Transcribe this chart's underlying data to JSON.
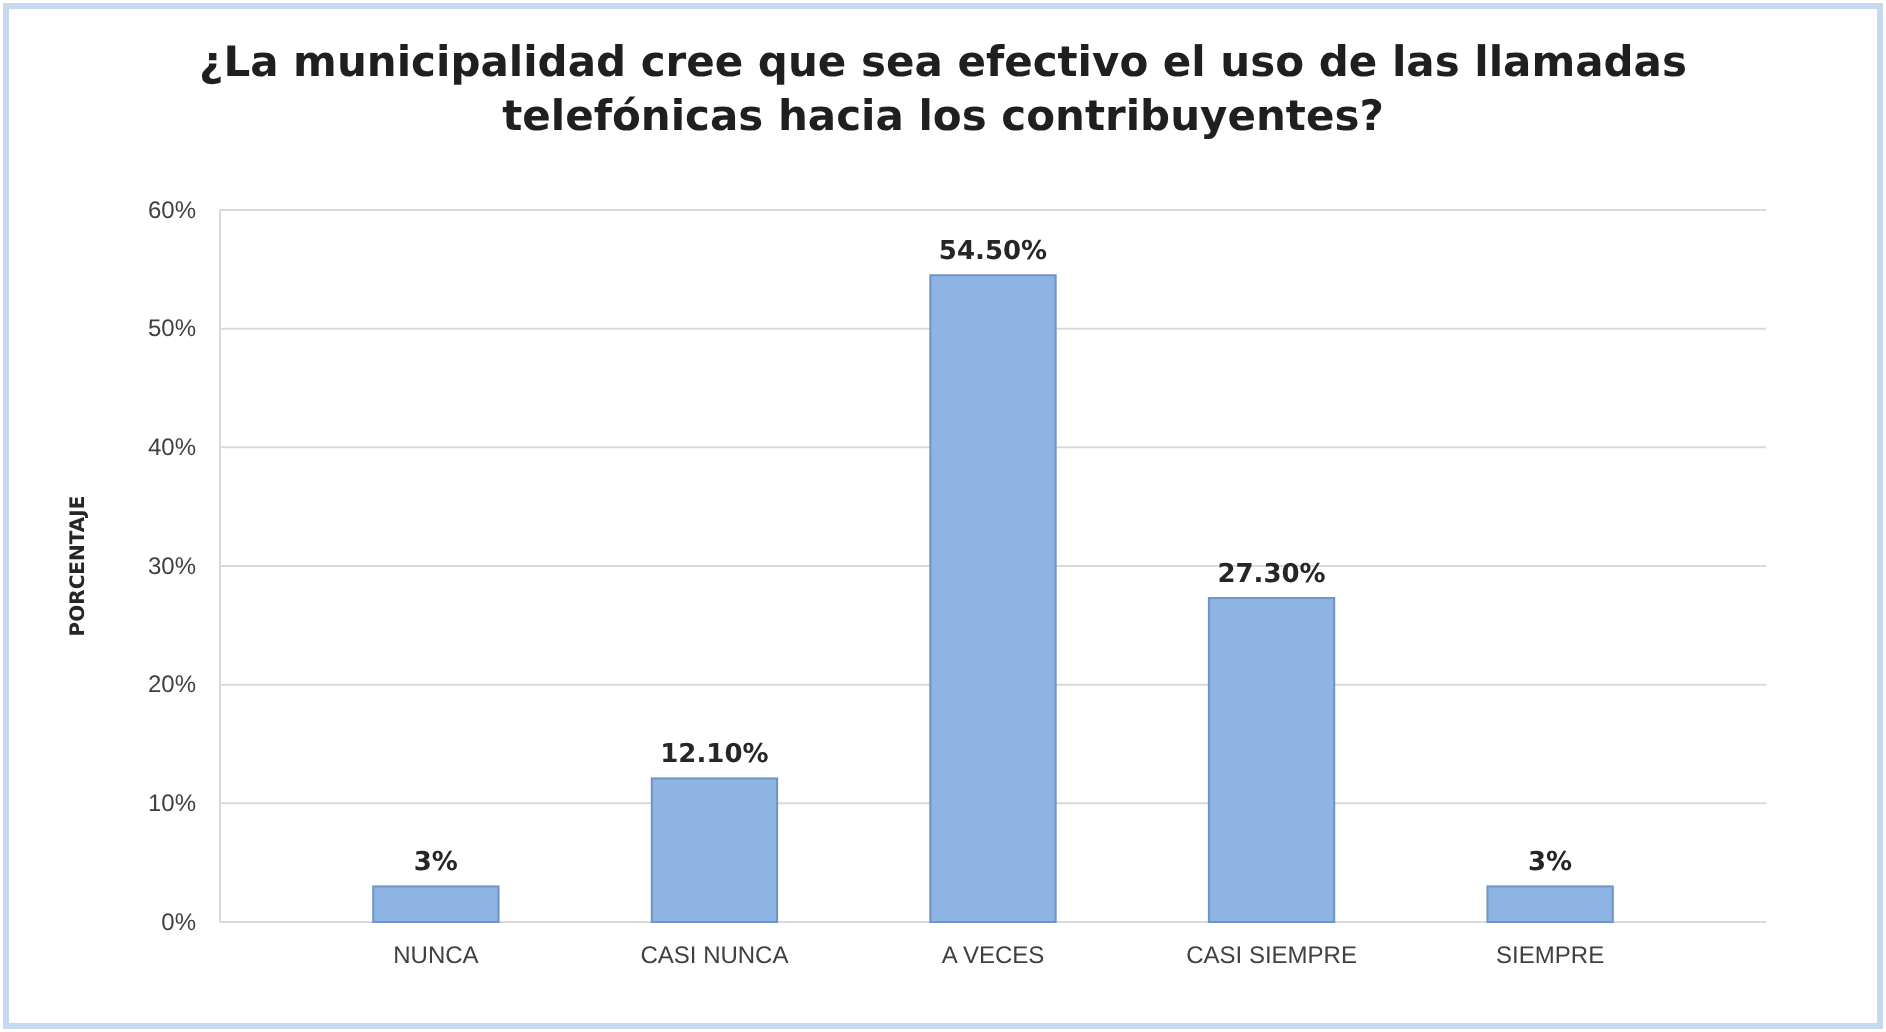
{
  "chart_data": {
    "type": "bar",
    "title": "¿La municipalidad cree que sea efectivo el uso de las llamadas telefónicas hacia los contribuyentes?",
    "ylabel": "PORCENTAJE",
    "categories": [
      "NUNCA",
      "CASI NUNCA",
      "A VECES",
      "CASI SIEMPRE",
      "SIEMPRE"
    ],
    "values": [
      3,
      12.1,
      54.5,
      27.3,
      3
    ],
    "value_labels": [
      "3%",
      "12.10%",
      "54.50%",
      "27.30%",
      "3%"
    ],
    "color": "#8eb4e3",
    "ylim": [
      0,
      60
    ],
    "yticks": [
      {
        "value": 0,
        "label": "0%"
      },
      {
        "value": 10,
        "label": "10%"
      },
      {
        "value": 20,
        "label": "20%"
      },
      {
        "value": 30,
        "label": "30%"
      },
      {
        "value": 40,
        "label": "40%"
      },
      {
        "value": 50,
        "label": "50%"
      },
      {
        "value": 60,
        "label": "60%"
      }
    ],
    "grid": "y"
  }
}
